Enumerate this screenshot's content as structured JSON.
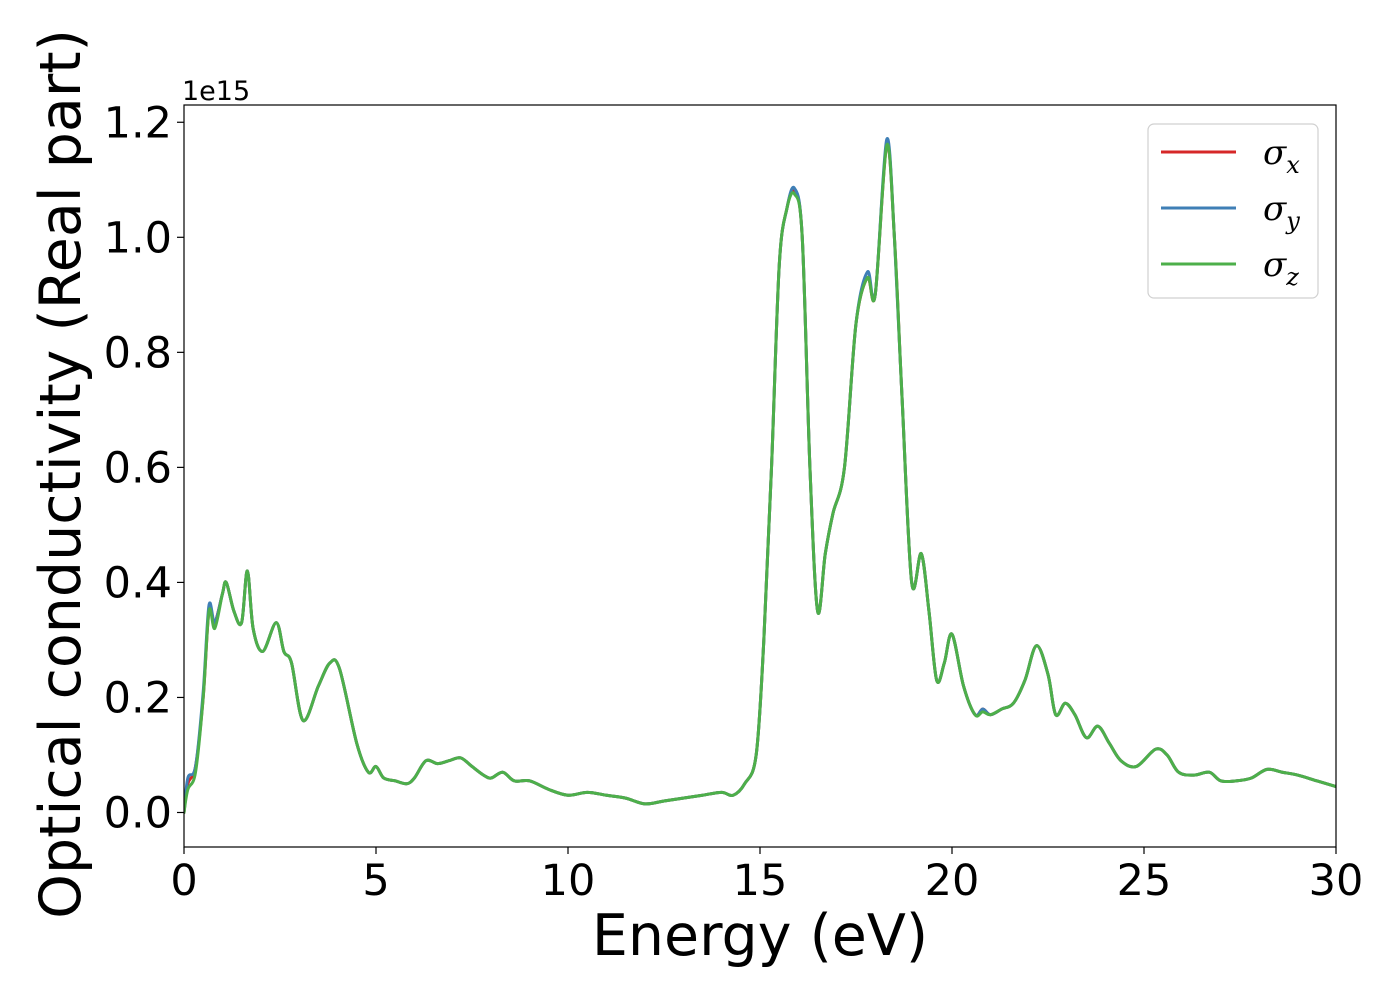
{
  "chart_data": {
    "type": "line",
    "xlabel": "Energy (eV)",
    "ylabel": "Optical conductivity (Real part)",
    "y_offset_label": "1e15",
    "xlim": [
      0,
      30
    ],
    "ylim": [
      -0.06,
      1.23
    ],
    "x_ticks": [
      0,
      5,
      10,
      15,
      20,
      25,
      30
    ],
    "x_tick_labels": [
      "0",
      "5",
      "10",
      "15",
      "20",
      "25",
      "30"
    ],
    "y_ticks": [
      0.0,
      0.2,
      0.4,
      0.6,
      0.8,
      1.0,
      1.2
    ],
    "y_tick_labels": [
      "0.0",
      "0.2",
      "0.4",
      "0.6",
      "0.8",
      "1.0",
      "1.2"
    ],
    "grid": false,
    "legend_position": "top-right",
    "legend": [
      {
        "symbol": "σ",
        "sub": "x",
        "color": "#d62728"
      },
      {
        "symbol": "σ",
        "sub": "y",
        "color": "#3f7fb6"
      },
      {
        "symbol": "σ",
        "sub": "z",
        "color": "#4daf4a"
      }
    ],
    "series": [
      {
        "name": "σx",
        "color": "#d62728",
        "x": [
          0,
          0.1,
          0.3,
          0.5,
          0.65,
          0.8,
          1.0,
          1.1,
          1.3,
          1.5,
          1.65,
          1.8,
          2.05,
          2.4,
          2.6,
          2.8,
          3.1,
          3.5,
          3.8,
          4.05,
          4.5,
          4.8,
          5.0,
          5.2,
          5.5,
          5.8,
          6.0,
          6.3,
          6.6,
          6.9,
          7.2,
          7.5,
          7.8,
          8.0,
          8.3,
          8.6,
          9.0,
          9.5,
          10.0,
          10.5,
          11.0,
          11.5,
          12.0,
          12.5,
          13.0,
          13.5,
          14.0,
          14.3,
          14.6,
          14.9,
          15.1,
          15.3,
          15.5,
          15.7,
          15.9,
          16.1,
          16.3,
          16.5,
          16.7,
          16.9,
          17.2,
          17.5,
          17.8,
          18.0,
          18.3,
          18.5,
          18.7,
          18.95,
          19.2,
          19.4,
          19.6,
          19.8,
          20.0,
          20.3,
          20.6,
          20.8,
          21.0,
          21.3,
          21.6,
          21.9,
          22.2,
          22.5,
          22.7,
          22.95,
          23.2,
          23.5,
          23.8,
          24.1,
          24.4,
          24.8,
          25.3,
          25.6,
          25.9,
          26.3,
          26.7,
          27.0,
          27.4,
          27.8,
          28.2,
          28.6,
          29.0,
          29.5,
          30.0
        ],
        "values": [
          0.0,
          0.05,
          0.08,
          0.2,
          0.35,
          0.33,
          0.38,
          0.4,
          0.35,
          0.33,
          0.42,
          0.32,
          0.28,
          0.33,
          0.28,
          0.26,
          0.16,
          0.22,
          0.26,
          0.25,
          0.12,
          0.07,
          0.08,
          0.06,
          0.055,
          0.05,
          0.06,
          0.09,
          0.085,
          0.09,
          0.095,
          0.08,
          0.065,
          0.06,
          0.07,
          0.055,
          0.055,
          0.04,
          0.03,
          0.035,
          0.03,
          0.025,
          0.015,
          0.02,
          0.025,
          0.03,
          0.035,
          0.03,
          0.05,
          0.1,
          0.3,
          0.6,
          0.95,
          1.05,
          1.08,
          1.0,
          0.6,
          0.35,
          0.45,
          0.52,
          0.6,
          0.85,
          0.93,
          0.9,
          1.16,
          1.0,
          0.72,
          0.4,
          0.45,
          0.35,
          0.23,
          0.26,
          0.31,
          0.22,
          0.17,
          0.18,
          0.17,
          0.18,
          0.19,
          0.23,
          0.29,
          0.24,
          0.17,
          0.19,
          0.17,
          0.13,
          0.15,
          0.12,
          0.09,
          0.08,
          0.11,
          0.1,
          0.07,
          0.065,
          0.07,
          0.055,
          0.055,
          0.06,
          0.075,
          0.07,
          0.065,
          0.055,
          0.045
        ]
      },
      {
        "name": "σy",
        "color": "#3f7fb6",
        "x": [
          0,
          0.1,
          0.3,
          0.5,
          0.65,
          0.8,
          1.0,
          1.1,
          1.3,
          1.5,
          1.65,
          1.8,
          2.05,
          2.4,
          2.6,
          2.8,
          3.1,
          3.5,
          3.8,
          4.05,
          4.5,
          4.8,
          5.0,
          5.2,
          5.5,
          5.8,
          6.0,
          6.3,
          6.6,
          6.9,
          7.2,
          7.5,
          7.8,
          8.0,
          8.3,
          8.6,
          9.0,
          9.5,
          10.0,
          10.5,
          11.0,
          11.5,
          12.0,
          12.5,
          13.0,
          13.5,
          14.0,
          14.3,
          14.6,
          14.9,
          15.1,
          15.3,
          15.5,
          15.7,
          15.9,
          16.1,
          16.3,
          16.5,
          16.7,
          16.9,
          17.2,
          17.5,
          17.8,
          18.0,
          18.3,
          18.5,
          18.7,
          18.95,
          19.2,
          19.4,
          19.6,
          19.8,
          20.0,
          20.3,
          20.6,
          20.8,
          21.0,
          21.3,
          21.6,
          21.9,
          22.2,
          22.5,
          22.7,
          22.95,
          23.2,
          23.5,
          23.8,
          24.1,
          24.4,
          24.8,
          25.3,
          25.6,
          25.9,
          26.3,
          26.7,
          27.0,
          27.4,
          27.8,
          28.2,
          28.6,
          29.0,
          29.5,
          30.0
        ],
        "values": [
          0.0,
          0.06,
          0.08,
          0.21,
          0.36,
          0.33,
          0.38,
          0.4,
          0.35,
          0.33,
          0.42,
          0.32,
          0.28,
          0.33,
          0.28,
          0.26,
          0.16,
          0.22,
          0.26,
          0.25,
          0.12,
          0.07,
          0.08,
          0.06,
          0.055,
          0.05,
          0.06,
          0.09,
          0.085,
          0.09,
          0.095,
          0.08,
          0.065,
          0.06,
          0.07,
          0.055,
          0.055,
          0.04,
          0.03,
          0.035,
          0.03,
          0.025,
          0.015,
          0.02,
          0.025,
          0.03,
          0.035,
          0.03,
          0.05,
          0.1,
          0.3,
          0.6,
          0.95,
          1.05,
          1.085,
          1.0,
          0.6,
          0.35,
          0.45,
          0.52,
          0.6,
          0.85,
          0.94,
          0.9,
          1.17,
          1.0,
          0.72,
          0.4,
          0.45,
          0.35,
          0.23,
          0.26,
          0.31,
          0.22,
          0.17,
          0.18,
          0.17,
          0.18,
          0.19,
          0.23,
          0.29,
          0.24,
          0.17,
          0.19,
          0.17,
          0.13,
          0.15,
          0.12,
          0.09,
          0.08,
          0.11,
          0.1,
          0.07,
          0.065,
          0.07,
          0.055,
          0.055,
          0.06,
          0.075,
          0.07,
          0.065,
          0.055,
          0.045
        ]
      },
      {
        "name": "σz",
        "color": "#4daf4a",
        "x": [
          0,
          0.1,
          0.3,
          0.5,
          0.65,
          0.8,
          1.0,
          1.1,
          1.3,
          1.5,
          1.65,
          1.8,
          2.05,
          2.4,
          2.6,
          2.8,
          3.1,
          3.5,
          3.8,
          4.05,
          4.5,
          4.8,
          5.0,
          5.2,
          5.5,
          5.8,
          6.0,
          6.3,
          6.6,
          6.9,
          7.2,
          7.5,
          7.8,
          8.0,
          8.3,
          8.6,
          9.0,
          9.5,
          10.0,
          10.5,
          11.0,
          11.5,
          12.0,
          12.5,
          13.0,
          13.5,
          14.0,
          14.3,
          14.6,
          14.9,
          15.1,
          15.3,
          15.5,
          15.7,
          15.9,
          16.1,
          16.3,
          16.5,
          16.7,
          16.9,
          17.2,
          17.5,
          17.8,
          18.0,
          18.3,
          18.5,
          18.7,
          18.95,
          19.2,
          19.4,
          19.6,
          19.8,
          20.0,
          20.3,
          20.6,
          20.8,
          21.0,
          21.3,
          21.6,
          21.9,
          22.2,
          22.5,
          22.7,
          22.95,
          23.2,
          23.5,
          23.8,
          24.1,
          24.4,
          24.8,
          25.3,
          25.6,
          25.9,
          26.3,
          26.7,
          27.0,
          27.4,
          27.8,
          28.2,
          28.6,
          29.0,
          29.5,
          30.0
        ],
        "values": [
          0.0,
          0.04,
          0.07,
          0.2,
          0.35,
          0.32,
          0.38,
          0.4,
          0.35,
          0.33,
          0.42,
          0.32,
          0.28,
          0.33,
          0.28,
          0.26,
          0.16,
          0.22,
          0.26,
          0.25,
          0.12,
          0.07,
          0.08,
          0.06,
          0.055,
          0.05,
          0.06,
          0.09,
          0.085,
          0.09,
          0.095,
          0.08,
          0.065,
          0.06,
          0.07,
          0.055,
          0.055,
          0.04,
          0.03,
          0.035,
          0.03,
          0.025,
          0.015,
          0.02,
          0.025,
          0.03,
          0.035,
          0.03,
          0.05,
          0.1,
          0.3,
          0.6,
          0.95,
          1.05,
          1.075,
          1.0,
          0.6,
          0.35,
          0.45,
          0.52,
          0.6,
          0.85,
          0.93,
          0.9,
          1.16,
          1.0,
          0.72,
          0.4,
          0.45,
          0.35,
          0.23,
          0.26,
          0.31,
          0.22,
          0.17,
          0.175,
          0.17,
          0.18,
          0.19,
          0.23,
          0.29,
          0.24,
          0.17,
          0.19,
          0.17,
          0.13,
          0.15,
          0.12,
          0.09,
          0.08,
          0.11,
          0.1,
          0.07,
          0.065,
          0.07,
          0.055,
          0.055,
          0.06,
          0.075,
          0.07,
          0.065,
          0.055,
          0.045
        ]
      }
    ]
  }
}
